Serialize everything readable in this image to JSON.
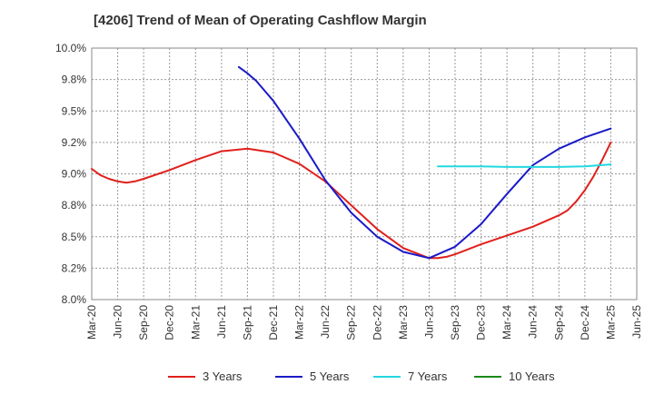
{
  "chart_data": {
    "type": "line",
    "title": "[4206]  Trend of Mean of Operating Cashflow Margin",
    "xlabel": "",
    "ylabel": "",
    "x_ticks": [
      "Mar-20",
      "Jun-20",
      "Sep-20",
      "Dec-20",
      "Mar-21",
      "Jun-21",
      "Sep-21",
      "Dec-21",
      "Mar-22",
      "Jun-22",
      "Sep-22",
      "Dec-22",
      "Mar-23",
      "Jun-23",
      "Sep-23",
      "Dec-23",
      "Mar-24",
      "Jun-24",
      "Sep-24",
      "Dec-24",
      "Mar-25",
      "Jun-25"
    ],
    "y_ticks": [
      "8.0%",
      "8.2%",
      "8.5%",
      "8.8%",
      "9.0%",
      "9.2%",
      "9.5%",
      "9.8%",
      "10.0%"
    ],
    "ylim": [
      8.0,
      10.0
    ],
    "grid": true,
    "legend_position": "bottom",
    "series": [
      {
        "name": "3 Years",
        "color": "#e0201c",
        "x": [
          "Mar-20",
          "Apr-20",
          "May-20",
          "Jun-20",
          "Jul-20",
          "Aug-20",
          "Sep-20",
          "Dec-20",
          "Mar-21",
          "Jun-21",
          "Sep-21",
          "Dec-21",
          "Mar-22",
          "Jun-22",
          "Sep-22",
          "Dec-22",
          "Mar-23",
          "Jun-23",
          "Jul-23",
          "Aug-23",
          "Sep-23",
          "Dec-23",
          "Mar-24",
          "Jun-24",
          "Sep-24",
          "Oct-24",
          "Nov-24",
          "Dec-24",
          "Jan-25",
          "Feb-25",
          "Mar-25"
        ],
        "values": [
          9.04,
          8.99,
          8.96,
          8.94,
          8.93,
          8.94,
          8.96,
          9.03,
          9.11,
          9.18,
          9.2,
          9.17,
          9.08,
          8.94,
          8.75,
          8.56,
          8.41,
          8.33,
          8.33,
          8.34,
          8.36,
          8.44,
          8.51,
          8.58,
          8.67,
          8.71,
          8.78,
          8.87,
          8.98,
          9.11,
          9.25
        ]
      },
      {
        "name": "5 Years",
        "color": "#1a1ac8",
        "x": [
          "Aug-21",
          "Sep-21",
          "Oct-21",
          "Nov-21",
          "Dec-21",
          "Mar-22",
          "Jun-22",
          "Sep-22",
          "Dec-22",
          "Mar-23",
          "Jun-23",
          "Sep-23",
          "Dec-23",
          "Mar-24",
          "Jun-24",
          "Sep-24",
          "Dec-24",
          "Mar-25"
        ],
        "values": [
          9.85,
          9.8,
          9.74,
          9.66,
          9.58,
          9.28,
          8.95,
          8.69,
          8.5,
          8.38,
          8.33,
          8.42,
          8.6,
          8.84,
          9.07,
          9.2,
          9.29,
          9.36
        ]
      },
      {
        "name": "7 Years",
        "color": "#22d8e0",
        "x": [
          "Jul-23",
          "Sep-23",
          "Dec-23",
          "Mar-24",
          "Jun-24",
          "Sep-24",
          "Dec-24",
          "Mar-25"
        ],
        "values": [
          9.06,
          9.06,
          9.06,
          9.055,
          9.055,
          9.055,
          9.06,
          9.075
        ]
      },
      {
        "name": "10 Years",
        "color": "#1a8a1a",
        "x": [],
        "values": []
      }
    ]
  }
}
